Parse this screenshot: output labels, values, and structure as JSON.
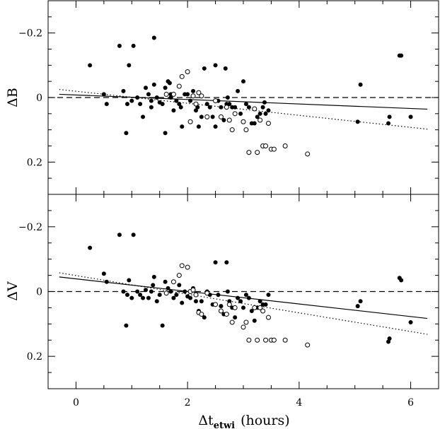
{
  "chart_data": {
    "type": "scatter",
    "xlabel_main": "Δt",
    "xlabel_sub": "etwi",
    "xlabel_units": "(hours)",
    "xlim": [
      -0.5,
      6.5
    ],
    "xticks": [
      0,
      2,
      4,
      6
    ],
    "xtick_labels": [
      "0",
      "2",
      "4",
      "6"
    ],
    "panels": [
      {
        "id": "top",
        "ylabel": "ΔB",
        "ylim": [
          -0.3,
          0.3
        ],
        "y_inverted": true,
        "yticks": [
          -0.2,
          0,
          0.2
        ],
        "ytick_labels": [
          "−0.2",
          "0",
          "0.2"
        ],
        "reference_line": 0,
        "fit_solid": [
          [
            -0.3,
            -0.01
          ],
          [
            6.3,
            0.036
          ]
        ],
        "fit_dotted": [
          [
            -0.3,
            -0.025
          ],
          [
            6.3,
            0.098
          ]
        ],
        "filled": [
          [
            0.25,
            -0.1
          ],
          [
            0.5,
            -0.01
          ],
          [
            0.55,
            0.02
          ],
          [
            0.78,
            -0.16
          ],
          [
            0.85,
            -0.02
          ],
          [
            0.9,
            0.11
          ],
          [
            0.92,
            0.02
          ],
          [
            0.95,
            -0.1
          ],
          [
            1.0,
            0.01
          ],
          [
            1.03,
            -0.16
          ],
          [
            1.1,
            0.0
          ],
          [
            1.15,
            0.02
          ],
          [
            1.2,
            0.06
          ],
          [
            1.25,
            -0.03
          ],
          [
            1.3,
            -0.01
          ],
          [
            1.35,
            0.03
          ],
          [
            1.35,
            0.01
          ],
          [
            1.4,
            -0.185
          ],
          [
            1.4,
            -0.04
          ],
          [
            1.45,
            0.0
          ],
          [
            1.5,
            0.015
          ],
          [
            1.55,
            0.02
          ],
          [
            1.6,
            0.11
          ],
          [
            1.6,
            -0.03
          ],
          [
            1.65,
            -0.05
          ],
          [
            1.68,
            -0.045
          ],
          [
            1.7,
            0.0
          ],
          [
            1.7,
            -0.01
          ],
          [
            1.75,
            0.04
          ],
          [
            1.8,
            0.01
          ],
          [
            1.85,
            0.02
          ],
          [
            1.88,
            0.03
          ],
          [
            1.9,
            0.09
          ],
          [
            1.95,
            -0.01
          ],
          [
            2.0,
            -0.01
          ],
          [
            2.05,
            0.01
          ],
          [
            2.1,
            -0.02
          ],
          [
            2.15,
            0.04
          ],
          [
            2.18,
            0.03
          ],
          [
            2.2,
            0.09
          ],
          [
            2.25,
            0.06
          ],
          [
            2.3,
            -0.09
          ],
          [
            2.35,
            0.02
          ],
          [
            2.4,
            0.03
          ],
          [
            2.45,
            0.06
          ],
          [
            2.5,
            -0.1
          ],
          [
            2.5,
            0.09
          ],
          [
            2.55,
            0.01
          ],
          [
            2.6,
            0.03
          ],
          [
            2.65,
            0.07
          ],
          [
            2.68,
            -0.09
          ],
          [
            2.7,
            0.02
          ],
          [
            2.72,
            0.0
          ],
          [
            2.75,
            0.02
          ],
          [
            2.8,
            0.03
          ],
          [
            2.85,
            0.03
          ],
          [
            2.9,
            -0.02
          ],
          [
            2.95,
            0.05
          ],
          [
            3.0,
            -0.05
          ],
          [
            3.05,
            0.02
          ],
          [
            3.1,
            0.03
          ],
          [
            3.15,
            0.08
          ],
          [
            3.2,
            0.08
          ],
          [
            3.25,
            0.06
          ],
          [
            3.3,
            0.05
          ],
          [
            3.35,
            0.03
          ],
          [
            3.38,
            0.015
          ],
          [
            3.4,
            0.05
          ],
          [
            3.45,
            0.04
          ],
          [
            5.05,
            0.075
          ],
          [
            5.1,
            -0.04
          ],
          [
            5.6,
            0.08
          ],
          [
            5.62,
            0.06
          ],
          [
            5.8,
            -0.13
          ],
          [
            5.83,
            -0.13
          ],
          [
            6.0,
            0.06
          ]
        ],
        "open": [
          [
            1.62,
            -0.01
          ],
          [
            1.75,
            -0.01
          ],
          [
            1.85,
            -0.035
          ],
          [
            1.9,
            -0.065
          ],
          [
            2.0,
            -0.08
          ],
          [
            2.05,
            0.075
          ],
          [
            2.1,
            -0.005
          ],
          [
            2.15,
            0.02
          ],
          [
            2.2,
            -0.015
          ],
          [
            2.25,
            -0.005
          ],
          [
            2.35,
            0.06
          ],
          [
            2.5,
            0.01
          ],
          [
            2.6,
            0.06
          ],
          [
            2.7,
            0.03
          ],
          [
            2.75,
            0.07
          ],
          [
            2.8,
            0.1
          ],
          [
            2.85,
            0.05
          ],
          [
            3.0,
            0.075
          ],
          [
            3.05,
            0.1
          ],
          [
            3.1,
            0.17
          ],
          [
            3.2,
            0.035
          ],
          [
            3.25,
            0.17
          ],
          [
            3.3,
            0.07
          ],
          [
            3.35,
            0.15
          ],
          [
            3.4,
            0.15
          ],
          [
            3.45,
            0.08
          ],
          [
            3.5,
            0.16
          ],
          [
            3.55,
            0.16
          ],
          [
            3.75,
            0.15
          ],
          [
            4.15,
            0.175
          ]
        ]
      },
      {
        "id": "bottom",
        "ylabel": "ΔV",
        "ylim": [
          -0.3,
          0.3
        ],
        "y_inverted": true,
        "yticks": [
          -0.2,
          0,
          0.2
        ],
        "ytick_labels": [
          "−0.2",
          "0",
          "0.2"
        ],
        "reference_line": 0,
        "fit_solid": [
          [
            -0.3,
            -0.045
          ],
          [
            6.3,
            0.083
          ]
        ],
        "fit_dotted": [
          [
            -0.3,
            -0.058
          ],
          [
            6.3,
            0.132
          ]
        ],
        "filled": [
          [
            0.25,
            -0.135
          ],
          [
            0.5,
            -0.055
          ],
          [
            0.55,
            -0.03
          ],
          [
            0.78,
            -0.175
          ],
          [
            0.85,
            0.0
          ],
          [
            0.9,
            0.105
          ],
          [
            0.92,
            0.01
          ],
          [
            0.95,
            -0.035
          ],
          [
            1.0,
            0.02
          ],
          [
            1.03,
            -0.175
          ],
          [
            1.1,
            0.0
          ],
          [
            1.15,
            0.01
          ],
          [
            1.2,
            0.02
          ],
          [
            1.25,
            -0.005
          ],
          [
            1.3,
            0.02
          ],
          [
            1.35,
            0.0
          ],
          [
            1.38,
            -0.02
          ],
          [
            1.4,
            -0.045
          ],
          [
            1.45,
            0.03
          ],
          [
            1.5,
            0.01
          ],
          [
            1.55,
            0.105
          ],
          [
            1.6,
            -0.03
          ],
          [
            1.65,
            -0.01
          ],
          [
            1.7,
            0.0
          ],
          [
            1.75,
            0.02
          ],
          [
            1.8,
            0.01
          ],
          [
            1.85,
            -0.02
          ],
          [
            1.9,
            0.035
          ],
          [
            1.95,
            0.0
          ],
          [
            2.0,
            0.015
          ],
          [
            2.05,
            0.02
          ],
          [
            2.1,
            -0.01
          ],
          [
            2.15,
            0.03
          ],
          [
            2.2,
            0.06
          ],
          [
            2.25,
            0.03
          ],
          [
            2.3,
            0.08
          ],
          [
            2.35,
            0.0
          ],
          [
            2.4,
            0.01
          ],
          [
            2.45,
            0.04
          ],
          [
            2.5,
            -0.09
          ],
          [
            2.55,
            0.01
          ],
          [
            2.6,
            0.045
          ],
          [
            2.65,
            0.07
          ],
          [
            2.7,
            -0.09
          ],
          [
            2.72,
            0.0
          ],
          [
            2.75,
            0.03
          ],
          [
            2.8,
            0.05
          ],
          [
            2.85,
            0.08
          ],
          [
            2.9,
            0.02
          ],
          [
            2.95,
            0.03
          ],
          [
            3.0,
            0.05
          ],
          [
            3.05,
            0.01
          ],
          [
            3.1,
            0.02
          ],
          [
            3.15,
            0.06
          ],
          [
            3.2,
            0.09
          ],
          [
            3.25,
            0.05
          ],
          [
            3.3,
            0.03
          ],
          [
            3.35,
            0.04
          ],
          [
            3.4,
            0.04
          ],
          [
            3.45,
            0.01
          ],
          [
            5.05,
            0.045
          ],
          [
            5.1,
            0.03
          ],
          [
            5.6,
            0.155
          ],
          [
            5.62,
            0.145
          ],
          [
            5.8,
            -0.042
          ],
          [
            5.83,
            -0.035
          ],
          [
            6.0,
            0.095
          ]
        ],
        "open": [
          [
            1.62,
            0.005
          ],
          [
            1.75,
            -0.03
          ],
          [
            1.85,
            -0.05
          ],
          [
            1.9,
            -0.08
          ],
          [
            2.0,
            -0.075
          ],
          [
            2.05,
            0.0
          ],
          [
            2.1,
            -0.005
          ],
          [
            2.15,
            0.01
          ],
          [
            2.2,
            0.065
          ],
          [
            2.25,
            0.07
          ],
          [
            2.35,
            0.005
          ],
          [
            2.5,
            0.04
          ],
          [
            2.6,
            0.06
          ],
          [
            2.7,
            0.07
          ],
          [
            2.75,
            0.04
          ],
          [
            2.8,
            0.095
          ],
          [
            2.85,
            0.05
          ],
          [
            3.0,
            0.11
          ],
          [
            3.05,
            0.095
          ],
          [
            3.1,
            0.15
          ],
          [
            3.2,
            0.05
          ],
          [
            3.25,
            0.15
          ],
          [
            3.3,
            0.05
          ],
          [
            3.35,
            0.06
          ],
          [
            3.4,
            0.15
          ],
          [
            3.45,
            0.08
          ],
          [
            3.5,
            0.15
          ],
          [
            3.55,
            0.15
          ],
          [
            3.75,
            0.15
          ],
          [
            4.15,
            0.165
          ]
        ]
      }
    ]
  }
}
